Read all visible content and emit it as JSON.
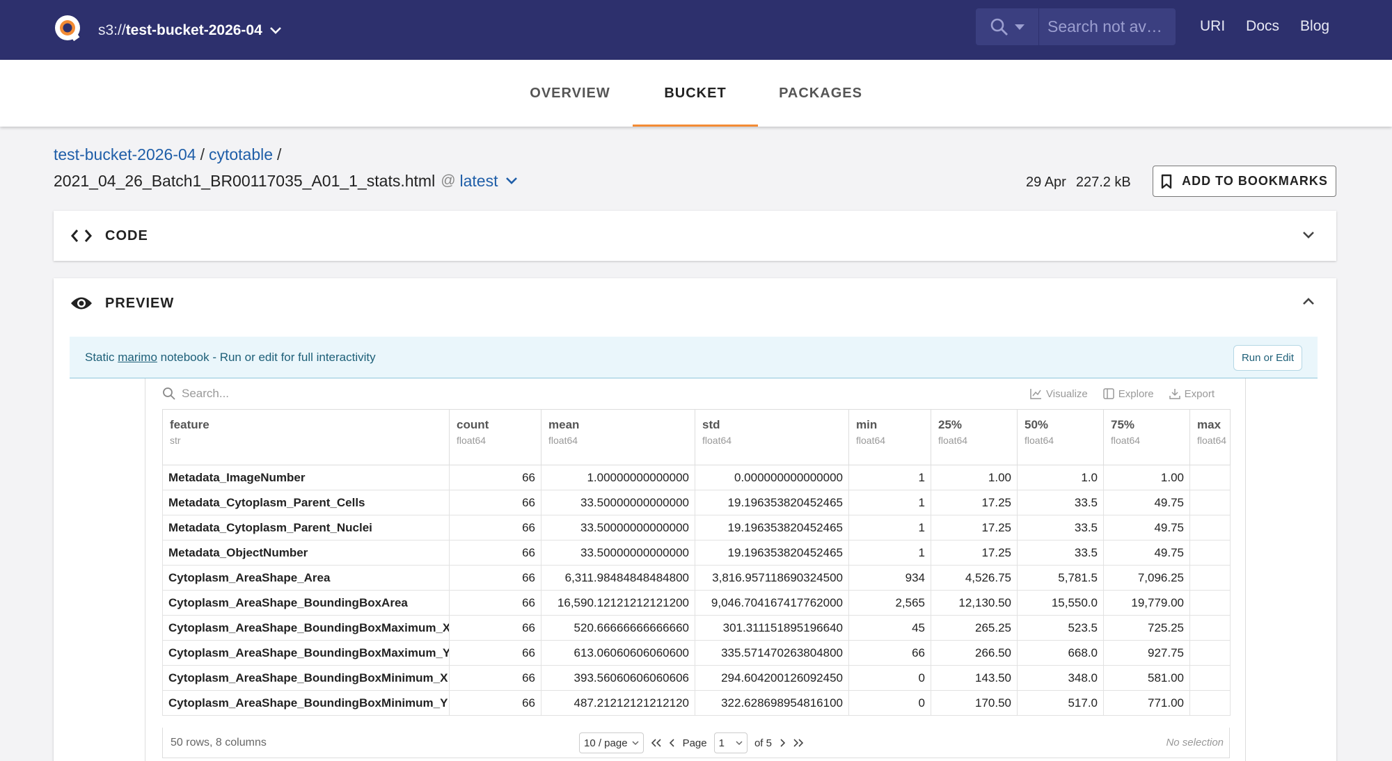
{
  "header": {
    "bucket_prefix": "s3://",
    "bucket_name": "test-bucket-2026-04",
    "search_placeholder": "Search not av…",
    "links": [
      "URI",
      "Docs",
      "Blog"
    ]
  },
  "tabs": [
    {
      "label": "OVERVIEW",
      "active": false
    },
    {
      "label": "BUCKET",
      "active": true
    },
    {
      "label": "PACKAGES",
      "active": false
    }
  ],
  "breadcrumb": {
    "bucket": "test-bucket-2026-04",
    "folder": "cytotable",
    "separator": "/",
    "file": "2021_04_26_Batch1_BR00117035_A01_1_stats.html",
    "at": "@",
    "version": "latest"
  },
  "file_meta": {
    "date": "29 Apr",
    "size": "227.2 kB",
    "bookmark_label": "ADD TO BOOKMARKS"
  },
  "panels": {
    "code_label": "CODE",
    "preview_label": "PREVIEW"
  },
  "banner": {
    "prefix": "Static ",
    "link": "marimo",
    "suffix": " notebook - Run or edit for full interactivity",
    "button": "Run or Edit"
  },
  "table_tools": {
    "search_placeholder": "Search...",
    "visualize": "Visualize",
    "explore": "Explore",
    "export": "Export"
  },
  "table": {
    "columns": [
      {
        "name": "feature",
        "dtype": "str"
      },
      {
        "name": "count",
        "dtype": "float64"
      },
      {
        "name": "mean",
        "dtype": "float64"
      },
      {
        "name": "std",
        "dtype": "float64"
      },
      {
        "name": "min",
        "dtype": "float64"
      },
      {
        "name": "25%",
        "dtype": "float64"
      },
      {
        "name": "50%",
        "dtype": "float64"
      },
      {
        "name": "75%",
        "dtype": "float64"
      },
      {
        "name": "max",
        "dtype": "float64"
      }
    ],
    "rows": [
      [
        "Metadata_ImageNumber",
        "66",
        "1.00000000000000",
        "0.000000000000000",
        "1",
        "1.00",
        "1.0",
        "1.00",
        ""
      ],
      [
        "Metadata_Cytoplasm_Parent_Cells",
        "66",
        "33.50000000000000",
        "19.196353820452465",
        "1",
        "17.25",
        "33.5",
        "49.75",
        ""
      ],
      [
        "Metadata_Cytoplasm_Parent_Nuclei",
        "66",
        "33.50000000000000",
        "19.196353820452465",
        "1",
        "17.25",
        "33.5",
        "49.75",
        ""
      ],
      [
        "Metadata_ObjectNumber",
        "66",
        "33.50000000000000",
        "19.196353820452465",
        "1",
        "17.25",
        "33.5",
        "49.75",
        ""
      ],
      [
        "Cytoplasm_AreaShape_Area",
        "66",
        "6,311.98484848484800",
        "3,816.957118690324500",
        "934",
        "4,526.75",
        "5,781.5",
        "7,096.25",
        ""
      ],
      [
        "Cytoplasm_AreaShape_BoundingBoxArea",
        "66",
        "16,590.12121212121200",
        "9,046.704167417762000",
        "2,565",
        "12,130.50",
        "15,550.0",
        "19,779.00",
        ""
      ],
      [
        "Cytoplasm_AreaShape_BoundingBoxMaximum_X",
        "66",
        "520.66666666666660",
        "301.311151895196640",
        "45",
        "265.25",
        "523.5",
        "725.25",
        ""
      ],
      [
        "Cytoplasm_AreaShape_BoundingBoxMaximum_Y",
        "66",
        "613.06060606060600",
        "335.571470263804800",
        "66",
        "266.50",
        "668.0",
        "927.75",
        ""
      ],
      [
        "Cytoplasm_AreaShape_BoundingBoxMinimum_X",
        "66",
        "393.56060606060606",
        "294.604200126092450",
        "0",
        "143.50",
        "348.0",
        "581.00",
        ""
      ],
      [
        "Cytoplasm_AreaShape_BoundingBoxMinimum_Y",
        "66",
        "487.21212121212120",
        "322.628698954816100",
        "0",
        "170.50",
        "517.0",
        "771.00",
        ""
      ]
    ]
  },
  "pager": {
    "summary": "50 rows, 8 columns",
    "per_page": "10 / page",
    "page_label": "Page",
    "page_value": "1",
    "of_label": "of 5",
    "selection": "No selection"
  }
}
